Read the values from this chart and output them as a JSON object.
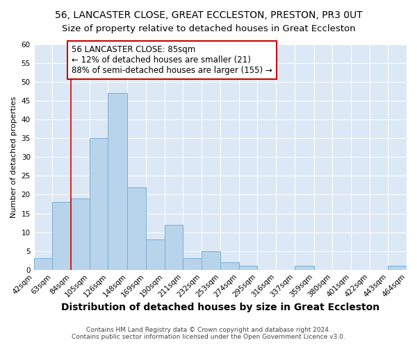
{
  "title": "56, LANCASTER CLOSE, GREAT ECCLESTON, PRESTON, PR3 0UT",
  "subtitle": "Size of property relative to detached houses in Great Eccleston",
  "xlabel": "Distribution of detached houses by size in Great Eccleston",
  "ylabel": "Number of detached properties",
  "footer_line1": "Contains HM Land Registry data © Crown copyright and database right 2024.",
  "footer_line2": "Contains public sector information licensed under the Open Government Licence v3.0.",
  "bin_edges": [
    42,
    63,
    84,
    105,
    126,
    148,
    169,
    190,
    211,
    232,
    253,
    274,
    295,
    316,
    337,
    359,
    380,
    401,
    422,
    443,
    464
  ],
  "bin_labels": [
    "42sqm",
    "63sqm",
    "84sqm",
    "105sqm",
    "126sqm",
    "148sqm",
    "169sqm",
    "190sqm",
    "211sqm",
    "232sqm",
    "253sqm",
    "274sqm",
    "295sqm",
    "316sqm",
    "337sqm",
    "359sqm",
    "380sqm",
    "401sqm",
    "422sqm",
    "443sqm",
    "464sqm"
  ],
  "counts": [
    3,
    18,
    19,
    35,
    47,
    22,
    8,
    12,
    3,
    5,
    2,
    1,
    0,
    0,
    1,
    0,
    0,
    0,
    0,
    1
  ],
  "bar_color": "#b8d4ea",
  "bar_edge_color": "#7aadd4",
  "vline_x": 84,
  "vline_color": "#cc0000",
  "annotation_box_edge_color": "#cc0000",
  "property_label": "56 LANCASTER CLOSE: 85sqm",
  "annotation_line1": "← 12% of detached houses are smaller (21)",
  "annotation_line2": "88% of semi-detached houses are larger (155) →",
  "ylim": [
    0,
    60
  ],
  "yticks": [
    0,
    5,
    10,
    15,
    20,
    25,
    30,
    35,
    40,
    45,
    50,
    55,
    60
  ],
  "background_color": "#ffffff",
  "plot_background_color": "#dce8f5",
  "grid_color": "#ffffff",
  "title_fontsize": 10,
  "subtitle_fontsize": 9.5,
  "xlabel_fontsize": 10,
  "ylabel_fontsize": 8,
  "tick_fontsize": 7.5,
  "annotation_fontsize": 8.5,
  "footer_fontsize": 6.5
}
